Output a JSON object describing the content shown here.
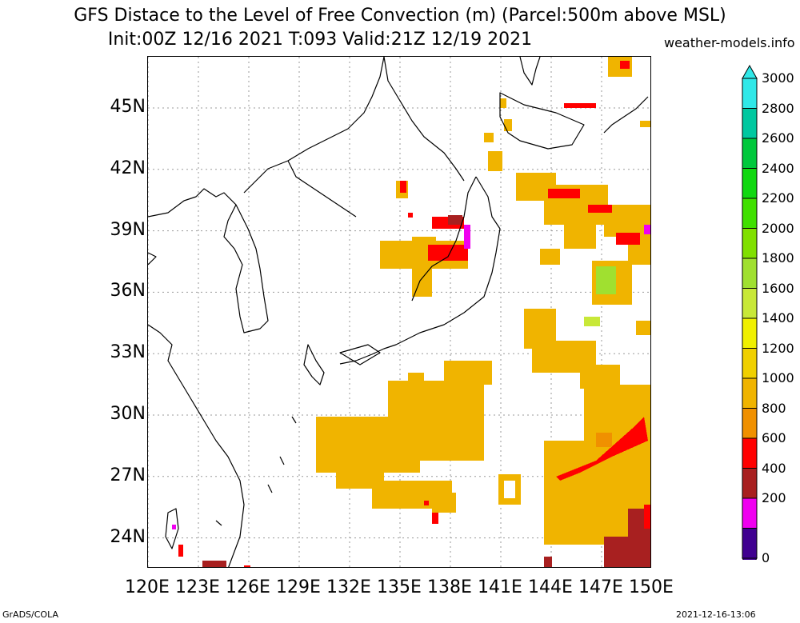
{
  "title_line1": "GFS Distace to the Level of Free Convection (m) (Parcel:500m above MSL)",
  "title_line2": "Init:00Z 12/16 2021 T:093 Valid:21Z 12/19 2021",
  "site": "weather-models.info",
  "footer_left": "GrADS/COLA",
  "footer_right": "2021-12-16-13:06",
  "lat_labels": [
    "45N",
    "42N",
    "39N",
    "36N",
    "33N",
    "30N",
    "27N",
    "24N"
  ],
  "lon_labels": [
    "120E",
    "123E",
    "126E",
    "129E",
    "132E",
    "135E",
    "138E",
    "141E",
    "144E",
    "147E",
    "150E"
  ],
  "colorbar": {
    "labels": [
      "3000",
      "2800",
      "2600",
      "2400",
      "2200",
      "2000",
      "1800",
      "1600",
      "1400",
      "1200",
      "1000",
      "800",
      "600",
      "400",
      "200",
      "0"
    ],
    "colors": [
      "#30e8e8",
      "#00c8a0",
      "#00c83c",
      "#10d810",
      "#40e000",
      "#80e000",
      "#a0e030",
      "#c8e838",
      "#f0f000",
      "#f0d000",
      "#f0b400",
      "#f09000",
      "#ff0000",
      "#a82020",
      "#f000f0",
      "#400090"
    ]
  }
}
